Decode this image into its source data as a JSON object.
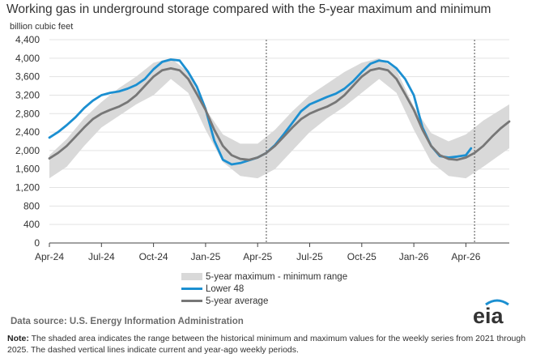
{
  "title": "Working gas in underground  storage compared with the 5-year maximum  and minimum",
  "unit_label": "billion cubic feet",
  "legend": {
    "range": "5-year maximum - minimum range",
    "lower48": "Lower 48",
    "avg": "5-year average"
  },
  "source": "Data source:  U.S. Energy Information Administration",
  "note_label": "Note:",
  "note_text": " The shaded area indicates the range between the historical minimum and maximum values for the weekly series from 2021 through 2025. The dashed vertical lines indicate current and year-ago weekly periods.",
  "logo_text": "eia",
  "colors": {
    "lower48": "#1b8fd1",
    "average": "#777777",
    "range": "#d9d9d9",
    "accent": "#1b8fd1"
  },
  "chart_data": {
    "type": "line",
    "ylim": [
      0,
      4400
    ],
    "y_ticks": [
      0,
      400,
      800,
      1200,
      1600,
      2000,
      2400,
      2800,
      3200,
      3600,
      4000,
      4400
    ],
    "y_tick_labels": [
      "0",
      "400",
      "800",
      "1,200",
      "1,600",
      "2,000",
      "2,400",
      "2,800",
      "3,200",
      "3,600",
      "4,000",
      "4,400"
    ],
    "x_ticks": [
      0,
      3,
      6,
      9,
      12,
      15,
      18,
      21,
      24
    ],
    "x_tick_labels": [
      "Apr-24",
      "Jul-24",
      "Oct-24",
      "Jan-25",
      "Apr-25",
      "Jul-25",
      "Oct-25",
      "Jan-26",
      "Apr-26"
    ],
    "x_range": [
      0,
      26.5
    ],
    "grid": true,
    "legend_position": "bottom-center",
    "x_unit_note": "x = months since Apr-24",
    "vlines": [
      12.5,
      24.5
    ],
    "range_upper": [
      [
        0,
        1900
      ],
      [
        1,
        2250
      ],
      [
        2,
        2700
      ],
      [
        3,
        3050
      ],
      [
        4,
        3350
      ],
      [
        5,
        3600
      ],
      [
        6,
        3900
      ],
      [
        7,
        4000
      ],
      [
        8,
        3700
      ],
      [
        9,
        2900
      ],
      [
        10,
        2350
      ],
      [
        11,
        2150
      ],
      [
        12,
        2150
      ],
      [
        13,
        2450
      ],
      [
        14,
        2850
      ],
      [
        15,
        3200
      ],
      [
        16,
        3450
      ],
      [
        17,
        3700
      ],
      [
        18,
        3900
      ],
      [
        19,
        4000
      ],
      [
        20,
        3750
      ],
      [
        21,
        2950
      ],
      [
        22,
        2380
      ],
      [
        23,
        2200
      ],
      [
        24,
        2350
      ],
      [
        25,
        2650
      ],
      [
        26.5,
        3000
      ]
    ],
    "range_lower": [
      [
        0,
        1400
      ],
      [
        1,
        1650
      ],
      [
        2,
        2100
      ],
      [
        3,
        2500
      ],
      [
        4,
        2750
      ],
      [
        5,
        3000
      ],
      [
        6,
        3200
      ],
      [
        7,
        3550
      ],
      [
        8,
        3250
      ],
      [
        9,
        2450
      ],
      [
        10,
        1750
      ],
      [
        11,
        1450
      ],
      [
        12,
        1400
      ],
      [
        13,
        1600
      ],
      [
        14,
        2000
      ],
      [
        15,
        2400
      ],
      [
        16,
        2700
      ],
      [
        17,
        2950
      ],
      [
        18,
        3250
      ],
      [
        19,
        3550
      ],
      [
        20,
        3250
      ],
      [
        21,
        2450
      ],
      [
        22,
        1750
      ],
      [
        23,
        1450
      ],
      [
        24,
        1400
      ],
      [
        25,
        1650
      ],
      [
        26.5,
        2050
      ]
    ],
    "series": [
      {
        "name": "Lower 48",
        "points": [
          [
            0,
            2280
          ],
          [
            0.5,
            2400
          ],
          [
            1,
            2550
          ],
          [
            1.5,
            2720
          ],
          [
            2,
            2920
          ],
          [
            2.5,
            3080
          ],
          [
            3,
            3200
          ],
          [
            3.5,
            3250
          ],
          [
            4,
            3280
          ],
          [
            4.5,
            3340
          ],
          [
            5,
            3420
          ],
          [
            5.5,
            3550
          ],
          [
            6,
            3760
          ],
          [
            6.5,
            3920
          ],
          [
            7,
            3970
          ],
          [
            7.5,
            3950
          ],
          [
            8,
            3700
          ],
          [
            8.5,
            3380
          ],
          [
            9,
            2900
          ],
          [
            9.5,
            2220
          ],
          [
            10,
            1800
          ],
          [
            10.5,
            1700
          ],
          [
            11,
            1730
          ],
          [
            11.5,
            1790
          ],
          [
            12,
            1850
          ],
          [
            12.5,
            1950
          ],
          [
            13,
            2120
          ],
          [
            13.5,
            2350
          ],
          [
            14,
            2600
          ],
          [
            14.5,
            2850
          ],
          [
            15,
            3000
          ],
          [
            15.5,
            3080
          ],
          [
            16,
            3160
          ],
          [
            16.5,
            3230
          ],
          [
            17,
            3340
          ],
          [
            17.5,
            3500
          ],
          [
            18,
            3700
          ],
          [
            18.5,
            3880
          ],
          [
            19,
            3950
          ],
          [
            19.5,
            3920
          ],
          [
            20,
            3780
          ],
          [
            20.5,
            3550
          ],
          [
            21,
            3200
          ],
          [
            21.5,
            2500
          ],
          [
            22,
            2100
          ],
          [
            22.5,
            1880
          ],
          [
            23,
            1850
          ],
          [
            23.5,
            1870
          ],
          [
            24,
            1900
          ],
          [
            24.3,
            2050
          ]
        ]
      },
      {
        "name": "5-year average",
        "points": [
          [
            0,
            1830
          ],
          [
            0.5,
            1950
          ],
          [
            1,
            2100
          ],
          [
            1.5,
            2300
          ],
          [
            2,
            2500
          ],
          [
            2.5,
            2680
          ],
          [
            3,
            2800
          ],
          [
            3.5,
            2880
          ],
          [
            4,
            2950
          ],
          [
            4.5,
            3050
          ],
          [
            5,
            3200
          ],
          [
            5.5,
            3400
          ],
          [
            6,
            3600
          ],
          [
            6.5,
            3740
          ],
          [
            7,
            3780
          ],
          [
            7.5,
            3740
          ],
          [
            8,
            3550
          ],
          [
            8.5,
            3220
          ],
          [
            9,
            2880
          ],
          [
            9.5,
            2450
          ],
          [
            10,
            2100
          ],
          [
            10.5,
            1900
          ],
          [
            11,
            1820
          ],
          [
            11.5,
            1800
          ],
          [
            12,
            1850
          ],
          [
            12.5,
            1950
          ],
          [
            13,
            2100
          ],
          [
            13.5,
            2300
          ],
          [
            14,
            2500
          ],
          [
            14.5,
            2680
          ],
          [
            15,
            2800
          ],
          [
            15.5,
            2880
          ],
          [
            16,
            2950
          ],
          [
            16.5,
            3050
          ],
          [
            17,
            3200
          ],
          [
            17.5,
            3400
          ],
          [
            18,
            3600
          ],
          [
            18.5,
            3740
          ],
          [
            19,
            3780
          ],
          [
            19.5,
            3740
          ],
          [
            20,
            3550
          ],
          [
            20.5,
            3220
          ],
          [
            21,
            2880
          ],
          [
            21.5,
            2450
          ],
          [
            22,
            2100
          ],
          [
            22.5,
            1900
          ],
          [
            23,
            1820
          ],
          [
            23.5,
            1800
          ],
          [
            24,
            1850
          ],
          [
            24.5,
            1950
          ],
          [
            25,
            2100
          ],
          [
            25.5,
            2300
          ],
          [
            26,
            2480
          ],
          [
            26.5,
            2630
          ]
        ]
      }
    ]
  }
}
